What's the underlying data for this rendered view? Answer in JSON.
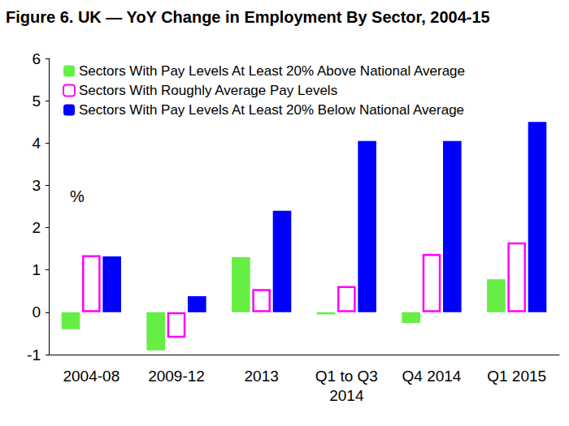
{
  "chart_data": {
    "type": "bar",
    "title": "Figure 6. UK — YoY Change in Employment By Sector, 2004-15",
    "annotation": "%",
    "categories": [
      "2004-08",
      "2009-12",
      "2013",
      "Q1 to Q3\n2014",
      "Q4 2014",
      "Q1 2015"
    ],
    "series": [
      {
        "name": "Sectors With Pay Levels At Least 20% Above National Average",
        "color": "#66ee44",
        "values": [
          -0.4,
          -0.9,
          1.3,
          -0.05,
          -0.25,
          0.78
        ]
      },
      {
        "name": "Sectors With Roughly Average Pay Levels",
        "color": "#ff00ff",
        "marker": "hollow",
        "values": [
          1.35,
          -0.6,
          0.55,
          0.62,
          1.38,
          1.65
        ]
      },
      {
        "name": "Sectors With Pay Levels At Least 20% Below National Average",
        "color": "#0000ff",
        "values": [
          1.32,
          0.38,
          2.4,
          4.05,
          4.05,
          4.5
        ]
      }
    ],
    "ylim": [
      -1,
      6
    ],
    "yticks": [
      -1,
      0,
      1,
      2,
      3,
      4,
      5,
      6
    ],
    "grid": false,
    "legend": "upper left"
  }
}
